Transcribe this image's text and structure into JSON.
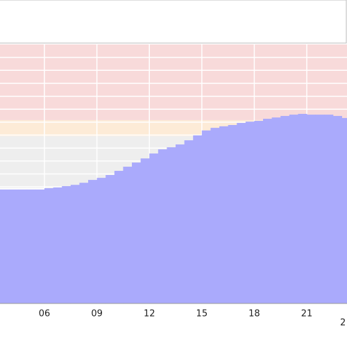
{
  "chart_data": {
    "type": "step-area",
    "x": [
      3.5,
      4,
      4.5,
      5,
      5.5,
      6,
      6.5,
      7,
      7.5,
      8,
      8.5,
      9,
      9.5,
      10,
      10.5,
      11,
      11.5,
      12,
      12.5,
      13,
      13.5,
      14,
      14.5,
      15,
      15.5,
      16,
      16.5,
      17,
      17.5,
      18,
      18.5,
      19,
      19.5,
      20,
      20.5,
      21,
      21.5,
      22,
      22.5,
      23
    ],
    "values": [
      44.0,
      44.0,
      44.0,
      44.0,
      44.0,
      44.5,
      44.8,
      45.3,
      45.8,
      46.6,
      47.7,
      48.5,
      49.6,
      51.2,
      52.8,
      54.4,
      56.0,
      57.9,
      59.5,
      60.3,
      61.4,
      63.0,
      64.9,
      66.8,
      67.8,
      68.4,
      68.9,
      69.7,
      70.2,
      70.5,
      71.3,
      71.8,
      72.4,
      72.9,
      73.2,
      72.9,
      72.9,
      72.9,
      72.4,
      71.6
    ],
    "color": "#aaaafc",
    "xlim": [
      3.46,
      23.3
    ],
    "ylim": [
      0,
      100
    ],
    "xticks": [
      {
        "value": 6,
        "label": "06"
      },
      {
        "value": 9,
        "label": "09"
      },
      {
        "value": 12,
        "label": "12"
      },
      {
        "value": 15,
        "label": "15"
      },
      {
        "value": 18,
        "label": "18"
      },
      {
        "value": 21,
        "label": "21"
      }
    ],
    "ygrid": [
      5,
      10,
      15,
      20,
      25,
      30,
      35,
      40,
      45,
      50,
      55,
      60,
      65,
      70,
      75,
      80,
      85,
      90,
      95
    ],
    "bands": [
      {
        "from": 44.5,
        "to": 64.6,
        "color": "#eeeeee"
      },
      {
        "from": 64.6,
        "to": 70.8,
        "color": "#fdebd7"
      },
      {
        "from": 70.8,
        "to": 100,
        "color": "#f8dada"
      }
    ],
    "edge_label": "2",
    "grid": true
  }
}
